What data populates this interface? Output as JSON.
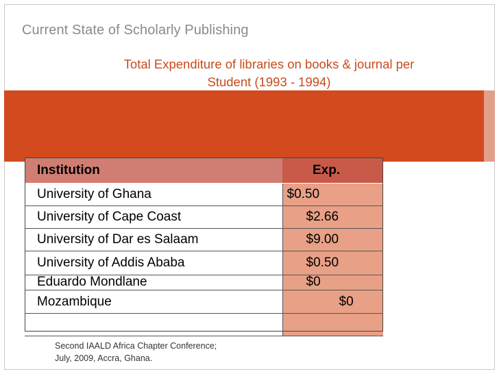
{
  "slide": {
    "header_title": "Current State of Scholarly Publishing",
    "subtitle_line1": "Total Expenditure of libraries on books & journal per",
    "subtitle_line2": "Student (1993 - 1994)",
    "colors": {
      "band": "#d24a1d",
      "subtitle": "#c84a1c",
      "header_row": "#d07d73",
      "value_cell": "#e8a086"
    }
  },
  "table": {
    "headers": {
      "institution": "Institution",
      "exp": "Exp."
    },
    "rows": [
      {
        "institution": "University of Ghana",
        "exp": "$0.50",
        "indent": 6
      },
      {
        "institution": "University of Cape Coast",
        "exp": "$2.66",
        "indent": 34
      },
      {
        "institution": "University of Dar es Salaam",
        "exp": "$9.00",
        "indent": 34
      },
      {
        "institution": "University of  Addis Ababa",
        "exp": "$0.50",
        "indent": 34
      },
      {
        "institution": "Eduardo Mondlane",
        "exp": "$0",
        "indent": 34
      },
      {
        "institution": "Mozambique",
        "exp": "$0",
        "indent": 82
      },
      {
        "institution": "",
        "exp": "",
        "indent": 34
      }
    ]
  },
  "footer": {
    "line1": "Second IAALD Africa Chapter Conference;",
    "line2": "July, 2009, Accra, Ghana."
  }
}
